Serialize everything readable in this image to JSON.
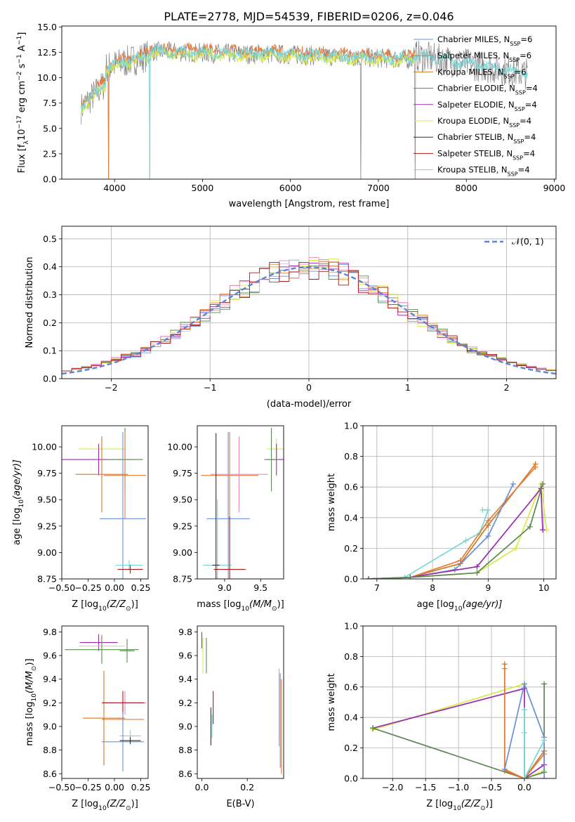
{
  "figure": {
    "title": "PLATE=2778, MJD=54539, FIBERID=0206, z=0.046"
  },
  "chart_data": [
    {
      "id": "spectrum",
      "type": "line",
      "xlabel": "wavelength [Angstrom, rest frame]",
      "ylabel": "Flux [f",
      "ylabel_sub": "λ",
      "ylabel_mid": "10",
      "ylabel_exp": "−17",
      "ylabel_rest": " erg cm",
      "ylabel_exp2": "−2",
      "ylabel_rest2": " s",
      "ylabel_exp3": "−1",
      "ylabel_rest3": " A",
      "ylabel_exp4": "−1",
      "ylabel_end": "]",
      "xlim": [
        3400,
        9020
      ],
      "ylim": [
        0,
        15.1
      ],
      "xticks": [
        "4000",
        "5000",
        "6000",
        "7000",
        "8000",
        "9000"
      ],
      "xtick_values": [
        4000,
        5000,
        6000,
        7000,
        8000,
        9000
      ],
      "yticks": [
        "0.0",
        "2.5",
        "5.0",
        "7.5",
        "10.0",
        "12.5",
        "15.0"
      ],
      "ytick_values": [
        0,
        2.5,
        5,
        7.5,
        10,
        12.5,
        15
      ],
      "legend_position": "top-right",
      "legend": [
        {
          "pre": "Chabrier MILES, N",
          "sub": "SSP",
          "post": "=6",
          "color": "#6a8fd8"
        },
        {
          "pre": "Salpeter MILES, N",
          "sub": "SSP",
          "post": "=6",
          "color": "#e47b3c"
        },
        {
          "pre": "Kroupa MILES, N",
          "sub": "SSP",
          "post": "=6",
          "color": "#d07a20"
        },
        {
          "pre": "Chabrier ELODIE, N",
          "sub": "SSP",
          "post": "=4",
          "color": "#5a8a50"
        },
        {
          "pre": "Salpeter ELODIE, N",
          "sub": "SSP",
          "post": "=4",
          "color": "#9a2ab0"
        },
        {
          "pre": "Kroupa ELODIE, N",
          "sub": "SSP",
          "post": "=4",
          "color": "#d8ea4a"
        },
        {
          "pre": "Chabrier STELIB, N",
          "sub": "SSP",
          "post": "=4",
          "color": "#303030"
        },
        {
          "pre": "Salpeter STELIB, N",
          "sub": "SSP",
          "post": "=4",
          "color": "#b01818"
        },
        {
          "pre": "Kroupa STELIB, N",
          "sub": "SSP",
          "post": "=4",
          "color": "#78d8d8"
        }
      ],
      "colors": {
        "data": "#808080",
        "model_orange": "#e47b3c",
        "model_yellow": "#d8ea4a",
        "model_cyan": "#78d8d8"
      }
    },
    {
      "id": "residuals",
      "type": "line",
      "xlabel": "(data-model)/error",
      "ylabel": "Normed distribution",
      "xlim": [
        -2.5,
        2.5
      ],
      "ylim": [
        0,
        0.545
      ],
      "xticks": [
        "−2",
        "−1",
        "0",
        "1",
        "2"
      ],
      "xtick_values": [
        -2,
        -1,
        0,
        1,
        2
      ],
      "yticks": [
        "0.0",
        "0.1",
        "0.2",
        "0.3",
        "0.4",
        "0.5"
      ],
      "ytick_values": [
        0,
        0.1,
        0.2,
        0.3,
        0.4,
        0.5
      ],
      "legend_label": "𝒩(0, 1)",
      "legend_position": "top-right",
      "grid": true,
      "bin_width": 0.1,
      "series_colors": [
        "#6a8fd8",
        "#e47b3c",
        "#5a8a50",
        "#9a2ab0",
        "#d8ea4a",
        "#e888c0",
        "#b01818"
      ]
    },
    {
      "id": "age_vs_Z",
      "type": "scatter",
      "xlabel": "Z [log",
      "xlabel_sub": "10",
      "xlabel_rest": "(Z/Z",
      "xlabel_sub2": "⊙",
      "xlabel_end": ")]",
      "ylabel": "age  [log",
      "ylabel_sub": "10",
      "ylabel_rest": "(age/yr)]",
      "xlim": [
        -0.5,
        0.32
      ],
      "ylim": [
        8.75,
        10.2
      ],
      "xticks": [
        "−0.50",
        "−0.25",
        "0.00",
        "0.25"
      ],
      "xtick_values": [
        -0.5,
        -0.25,
        0,
        0.25
      ],
      "yticks": [
        "8.75",
        "9.00",
        "9.25",
        "9.50",
        "9.75",
        "10.00"
      ],
      "ytick_values": [
        8.75,
        9,
        9.25,
        9.5,
        9.75,
        10
      ],
      "points": [
        {
          "x": -0.12,
          "y": 9.98,
          "xerr": 0.22,
          "yerr": 0.1,
          "color": "#d8ea4a"
        },
        {
          "x": -0.15,
          "y": 9.88,
          "xerr": 0.35,
          "yerr": 0.15,
          "color": "#9a2ab0"
        },
        {
          "x": 0.1,
          "y": 9.88,
          "xerr": 0.17,
          "yerr": 0.3,
          "color": "#5a8a50"
        },
        {
          "x": 0.1,
          "y": 9.73,
          "xerr": 0.2,
          "yerr": 0.41,
          "color": "#e47b3c"
        },
        {
          "x": -0.12,
          "y": 9.74,
          "xerr": 0.25,
          "yerr": 0.36,
          "color": "#d07a20"
        },
        {
          "x": 0.08,
          "y": 9.32,
          "xerr": 0.22,
          "yerr": 0.82,
          "color": "#6a8fd8"
        },
        {
          "x": 0.14,
          "y": 8.88,
          "xerr": 0.13,
          "yerr": 0.05,
          "color": "#78d8d8"
        },
        {
          "x": 0.15,
          "y": 8.84,
          "xerr": 0.12,
          "yerr": 0.04,
          "color": "#b01818"
        }
      ]
    },
    {
      "id": "age_vs_mass",
      "type": "scatter",
      "xlabel": "mass [log",
      "xlabel_sub": "10",
      "xlabel_rest": "(M/M",
      "xlabel_sub2": "⊙",
      "xlabel_end": ")]",
      "xlim": [
        8.62,
        9.82
      ],
      "ylim": [
        8.75,
        10.2
      ],
      "xticks": [
        "9.0",
        "9.5"
      ],
      "xtick_values": [
        9,
        9.5
      ],
      "yticks": [
        "8.75",
        "9.00",
        "9.25",
        "9.50",
        "9.75",
        "10.00"
      ],
      "ytick_values": [
        8.75,
        9,
        9.25,
        9.5,
        9.75,
        10
      ],
      "points": [
        {
          "x": 9.72,
          "y": 9.98,
          "xerr": 0.13,
          "yerr": 0.1,
          "color": "#d8ea4a"
        },
        {
          "x": 9.72,
          "y": 9.88,
          "xerr": 0.14,
          "yerr": 0.15,
          "color": "#9a2ab0"
        },
        {
          "x": 9.65,
          "y": 9.88,
          "xerr": 0.1,
          "yerr": 0.3,
          "color": "#5a8a50"
        },
        {
          "x": 9.07,
          "y": 9.73,
          "xerr": 0.4,
          "yerr": 0.41,
          "color": "#e47b3c"
        },
        {
          "x": 9.2,
          "y": 9.74,
          "xerr": 0.4,
          "yerr": 0.36,
          "color": "#e888c0"
        },
        {
          "x": 9.05,
          "y": 9.32,
          "xerr": 0.3,
          "yerr": 0.82,
          "color": "#6a8fd8"
        },
        {
          "x": 8.9,
          "y": 8.88,
          "xerr": 0.2,
          "yerr": 0.62,
          "color": "#78d8d8"
        },
        {
          "x": 9.07,
          "y": 8.84,
          "xerr": 0.22,
          "yerr": 0.5,
          "color": "#b01818"
        },
        {
          "x": 8.88,
          "y": 8.88,
          "xerr": 0.05,
          "yerr": 1.25,
          "color": "#303030"
        }
      ]
    },
    {
      "id": "weight_vs_age",
      "type": "line",
      "xlabel": "age  [log",
      "xlabel_sub": "10",
      "xlabel_rest": "(age/yr)]",
      "ylabel": "mass weight",
      "xlim": [
        6.75,
        10.22
      ],
      "ylim": [
        0,
        1
      ],
      "xticks": [
        "7",
        "8",
        "9",
        "10"
      ],
      "xtick_values": [
        7,
        8,
        9,
        10
      ],
      "yticks": [
        "0.0",
        "0.2",
        "0.4",
        "0.6",
        "0.8",
        "1.0"
      ],
      "ytick_values": [
        0,
        0.2,
        0.4,
        0.6,
        0.8,
        1.0
      ],
      "grid": true,
      "series": [
        {
          "color": "#78d8d8",
          "points": [
            [
              6.85,
              0
            ],
            [
              7.5,
              0.01
            ],
            [
              8.6,
              0.25
            ],
            [
              8.85,
              0.3
            ],
            [
              9.0,
              0.45
            ],
            [
              8.9,
              0.45
            ]
          ]
        },
        {
          "color": "#d07a20",
          "points": [
            [
              6.85,
              0
            ],
            [
              7.6,
              0.01
            ],
            [
              8.5,
              0.1
            ],
            [
              9.0,
              0.35
            ],
            [
              9.85,
              0.75
            ]
          ]
        },
        {
          "color": "#e47b3c",
          "points": [
            [
              6.85,
              0
            ],
            [
              7.6,
              0.01
            ],
            [
              8.5,
              0.12
            ],
            [
              9.0,
              0.38
            ],
            [
              9.85,
              0.73
            ]
          ]
        },
        {
          "color": "#6a8fd8",
          "points": [
            [
              6.85,
              0
            ],
            [
              7.6,
              0.01
            ],
            [
              8.4,
              0.06
            ],
            [
              9.0,
              0.28
            ],
            [
              9.45,
              0.62
            ]
          ]
        },
        {
          "color": "#d8ea4a",
          "points": [
            [
              6.85,
              0
            ],
            [
              7.6,
              0.01
            ],
            [
              8.8,
              0.04
            ],
            [
              9.5,
              0.2
            ],
            [
              9.95,
              0.62
            ],
            [
              10.05,
              0.32
            ]
          ]
        },
        {
          "color": "#9a2ab0",
          "points": [
            [
              6.85,
              0
            ],
            [
              7.6,
              0.01
            ],
            [
              8.8,
              0.08
            ],
            [
              9.95,
              0.59
            ],
            [
              9.98,
              0.32
            ]
          ]
        },
        {
          "color": "#5a8a50",
          "points": [
            [
              6.85,
              0
            ],
            [
              7.6,
              0.01
            ],
            [
              8.8,
              0.04
            ],
            [
              9.75,
              0.34
            ],
            [
              9.98,
              0.62
            ]
          ]
        }
      ]
    },
    {
      "id": "mass_vs_Z",
      "type": "scatter",
      "xlabel": "Z [log",
      "xlabel_sub": "10",
      "xlabel_rest": "(Z/Z",
      "xlabel_sub2": "⊙",
      "xlabel_end": ")]",
      "ylabel": "mass [log",
      "ylabel_sub": "10",
      "ylabel_rest": "(M/M",
      "ylabel_sub2": "⊙",
      "ylabel_end": ")]",
      "xlim": [
        -0.5,
        0.32
      ],
      "ylim": [
        8.56,
        9.85
      ],
      "xticks": [
        "−0.50",
        "−0.25",
        "0.00",
        "0.25"
      ],
      "xtick_values": [
        -0.5,
        -0.25,
        0,
        0.25
      ],
      "yticks": [
        "8.6",
        "8.8",
        "9.0",
        "9.2",
        "9.4",
        "9.6",
        "9.8"
      ],
      "ytick_values": [
        8.6,
        8.8,
        9,
        9.2,
        9.4,
        9.6,
        9.8
      ],
      "points": [
        {
          "x": -0.15,
          "y": 9.71,
          "xerr": 0.18,
          "yerr": 0.07,
          "color": "#9a2ab0"
        },
        {
          "x": -0.12,
          "y": 9.68,
          "xerr": 0.22,
          "yerr": 0.1,
          "color": "#d8ea4a"
        },
        {
          "x": -0.12,
          "y": 9.65,
          "xerr": 0.35,
          "yerr": 0.12,
          "color": "#5a8a50"
        },
        {
          "x": 0.12,
          "y": 9.64,
          "xerr": 0.07,
          "yerr": 0.1,
          "color": "#5a8a50"
        },
        {
          "x": 0.1,
          "y": 9.2,
          "xerr": 0.2,
          "yerr": 0.1,
          "color": "#e888c0"
        },
        {
          "x": 0.08,
          "y": 9.06,
          "xerr": 0.2,
          "yerr": 0.05,
          "color": "#e47b3c"
        },
        {
          "x": -0.1,
          "y": 9.07,
          "xerr": 0.2,
          "yerr": 0.4,
          "color": "#d07a20"
        },
        {
          "x": 0.08,
          "y": 9.2,
          "xerr": 0.2,
          "yerr": 0.1,
          "color": "#b01818"
        },
        {
          "x": 0.15,
          "y": 8.92,
          "xerr": 0.1,
          "yerr": 0.05,
          "color": "#78d8d8"
        },
        {
          "x": 0.08,
          "y": 8.87,
          "xerr": 0.2,
          "yerr": 0.25,
          "color": "#6a8fd8"
        },
        {
          "x": 0.15,
          "y": 8.88,
          "xerr": 0.1,
          "yerr": 0.03,
          "color": "#303030"
        }
      ]
    },
    {
      "id": "mass_vs_ebv",
      "type": "scatter",
      "xlabel": "E(B-V)",
      "xlim": [
        -0.02,
        0.36
      ],
      "ylim": [
        8.56,
        9.85
      ],
      "xticks": [
        "0.0",
        "0.2"
      ],
      "xtick_values": [
        0,
        0.2
      ],
      "yticks": [
        "8.6",
        "8.8",
        "9.0",
        "9.2",
        "9.4",
        "9.6",
        "9.8"
      ],
      "ytick_values": [
        8.6,
        8.8,
        9,
        9.2,
        9.4,
        9.6,
        9.8
      ],
      "points": [
        {
          "x": 0.0,
          "y": 9.73,
          "yerr": 0.07,
          "color": "#9a2ab0"
        },
        {
          "x": 0.005,
          "y": 9.6,
          "yerr": 0.15,
          "color": "#d8ea4a"
        },
        {
          "x": 0.02,
          "y": 9.6,
          "yerr": 0.15,
          "color": "#5a8a50"
        },
        {
          "x": 0.04,
          "y": 9.0,
          "yerr": 0.16,
          "color": "#303030"
        },
        {
          "x": 0.05,
          "y": 9.16,
          "yerr": 0.14,
          "color": "#b01818"
        },
        {
          "x": 0.045,
          "y": 9.0,
          "yerr": 0.1,
          "color": "#78d8d8"
        },
        {
          "x": 0.34,
          "y": 9.16,
          "yerr": 0.33,
          "color": "#e888c0"
        },
        {
          "x": 0.345,
          "y": 9.05,
          "yerr": 0.4,
          "color": "#6a8fd8"
        },
        {
          "x": 0.35,
          "y": 9.0,
          "yerr": 0.4,
          "color": "#e47b3c"
        }
      ]
    },
    {
      "id": "weight_vs_Z",
      "type": "line",
      "xlabel": "Z [log",
      "xlabel_sub": "10",
      "xlabel_rest": "(Z/Z",
      "xlabel_sub2": "⊙",
      "xlabel_end": ")]",
      "ylabel": "mass weight",
      "xlim": [
        -2.45,
        0.48
      ],
      "ylim": [
        0,
        1
      ],
      "xticks": [
        "−2.0",
        "−1.5",
        "−1.0",
        "−0.5",
        "0.0"
      ],
      "xtick_values": [
        -2,
        -1.5,
        -1,
        -0.5,
        0
      ],
      "yticks": [
        "0.0",
        "0.2",
        "0.4",
        "0.6",
        "0.8",
        "1.0"
      ],
      "ytick_values": [
        0,
        0.2,
        0.4,
        0.6,
        0.8,
        1.0
      ],
      "grid": true,
      "series": [
        {
          "color": "#d8ea4a",
          "points": [
            [
              -2.3,
              0.32
            ],
            [
              0.0,
              0.62
            ],
            [
              0.0,
              0.0
            ],
            [
              0.3,
              0.05
            ]
          ]
        },
        {
          "color": "#9a2ab0",
          "points": [
            [
              -2.3,
              0.33
            ],
            [
              0.0,
              0.59
            ],
            [
              0.0,
              0.0
            ],
            [
              0.3,
              0.09
            ]
          ]
        },
        {
          "color": "#5a8a50",
          "points": [
            [
              -2.3,
              0.33
            ],
            [
              0.0,
              0.0
            ],
            [
              0.3,
              0.04
            ],
            [
              0.3,
              0.62
            ]
          ]
        },
        {
          "color": "#d07a20",
          "points": [
            [
              -0.3,
              0.75
            ],
            [
              -0.3,
              0.05
            ],
            [
              0.0,
              0.0
            ],
            [
              0.3,
              0.18
            ]
          ]
        },
        {
          "color": "#e47b3c",
          "points": [
            [
              -0.3,
              0.72
            ],
            [
              -0.3,
              0.06
            ],
            [
              0.0,
              0.0
            ],
            [
              0.3,
              0.16
            ]
          ]
        },
        {
          "color": "#6a8fd8",
          "points": [
            [
              -0.3,
              0.06
            ],
            [
              0.0,
              0.62
            ],
            [
              0.3,
              0.27
            ],
            [
              0.3,
              0.0
            ]
          ]
        },
        {
          "color": "#78d8d8",
          "points": [
            [
              0.0,
              0.45
            ],
            [
              0.0,
              0.3
            ],
            [
              0.0,
              0.0
            ],
            [
              0.3,
              0.25
            ]
          ]
        }
      ]
    }
  ]
}
